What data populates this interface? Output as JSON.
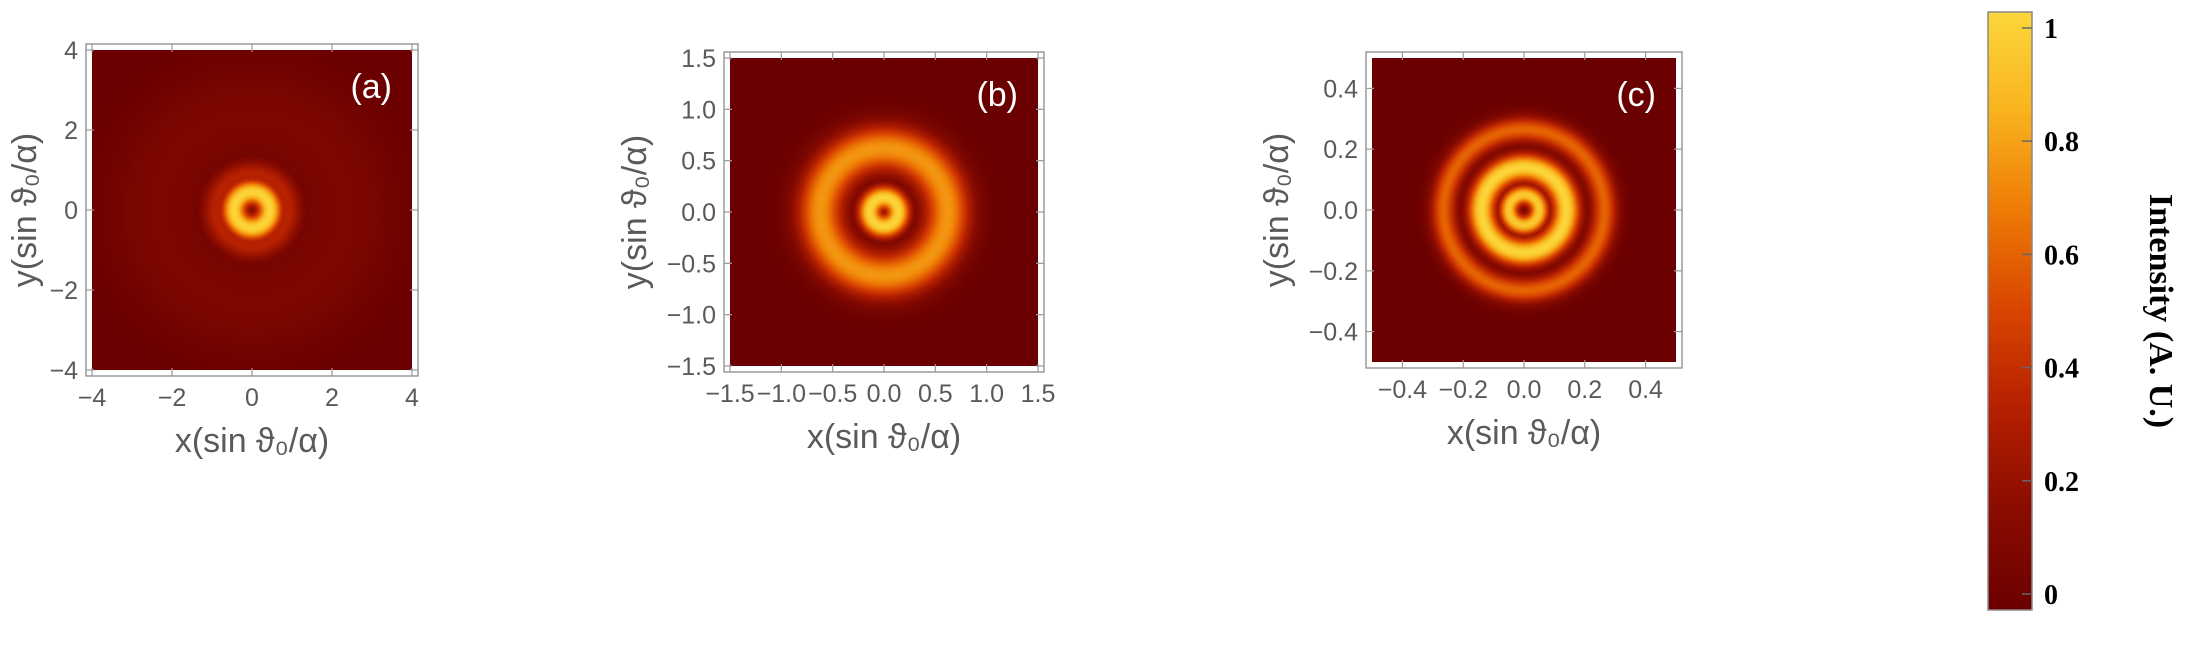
{
  "chart_data": [
    {
      "type": "heatmap",
      "panel_label": "(a)",
      "xlabel": "x(sin ϑ₀/α)",
      "ylabel": "y(sin ϑ₀/α)",
      "xlim": [
        -4,
        4
      ],
      "ylim": [
        -4,
        4
      ],
      "xticks": [
        "−4",
        "−2",
        "0",
        "2",
        "4"
      ],
      "yticks": [
        "−4",
        "−2",
        "0",
        "2",
        "4"
      ],
      "xtick_values": [
        -4,
        -2,
        0,
        2,
        4
      ],
      "ytick_values": [
        -4,
        -2,
        0,
        2,
        4
      ],
      "rings": [
        {
          "radius": 0.0,
          "intensity": 0.05,
          "width": 0.12
        },
        {
          "radius": 0.45,
          "intensity": 1.0,
          "width": 0.22
        },
        {
          "radius": 0.9,
          "intensity": 0.35,
          "width": 0.25
        },
        {
          "radius": 2.3,
          "intensity": 0.1,
          "width": 0.9
        }
      ],
      "grid": false
    },
    {
      "type": "heatmap",
      "panel_label": "(b)",
      "xlabel": "x(sin ϑ₀/α)",
      "ylabel": "y(sin ϑ₀/α)",
      "xlim": [
        -1.5,
        1.5
      ],
      "ylim": [
        -1.5,
        1.5
      ],
      "xticks": [
        "−1.5",
        "−1.0",
        "−0.5",
        "0.0",
        "0.5",
        "1.0",
        "1.5"
      ],
      "yticks": [
        "−1.5",
        "−1.0",
        "−0.5",
        "0.0",
        "0.5",
        "1.0",
        "1.5"
      ],
      "xtick_values": [
        -1.5,
        -1.0,
        -0.5,
        0.0,
        0.5,
        1.0,
        1.5
      ],
      "ytick_values": [
        -1.5,
        -1.0,
        -0.5,
        0.0,
        0.5,
        1.0,
        1.5
      ],
      "rings": [
        {
          "radius": 0.0,
          "intensity": 0.05,
          "width": 0.05
        },
        {
          "radius": 0.14,
          "intensity": 1.0,
          "width": 0.08
        },
        {
          "radius": 0.62,
          "intensity": 0.75,
          "width": 0.16
        }
      ],
      "grid": false
    },
    {
      "type": "heatmap",
      "panel_label": "(c)",
      "xlabel": "x(sin ϑ₀/α)",
      "ylabel": "y(sin ϑ₀/α)",
      "xlim": [
        -0.5,
        0.5
      ],
      "ylim": [
        -0.5,
        0.5
      ],
      "xticks": [
        "−0.4",
        "−0.2",
        "0.0",
        "0.2",
        "0.4"
      ],
      "yticks": [
        "−0.4",
        "−0.2",
        "0.0",
        "0.2",
        "0.4"
      ],
      "xtick_values": [
        -0.4,
        -0.2,
        0.0,
        0.2,
        0.4
      ],
      "ytick_values": [
        -0.4,
        -0.2,
        0.0,
        0.2,
        0.4
      ],
      "rings": [
        {
          "radius": 0.0,
          "intensity": 0.05,
          "width": 0.012
        },
        {
          "radius": 0.05,
          "intensity": 0.95,
          "width": 0.022
        },
        {
          "radius": 0.14,
          "intensity": 1.0,
          "width": 0.032
        },
        {
          "radius": 0.265,
          "intensity": 0.6,
          "width": 0.03
        }
      ],
      "grid": false
    }
  ],
  "colorbar": {
    "title": "Intensity (A. U.)",
    "range": [
      0,
      1
    ],
    "tick_values": [
      0,
      0.2,
      0.4,
      0.6,
      0.8,
      1
    ],
    "tick_labels": [
      "0",
      "0.2",
      "0.4",
      "0.6",
      "0.8",
      "1"
    ],
    "colors": [
      "#6b0000",
      "#8a0c00",
      "#b41f00",
      "#d84400",
      "#ee7a05",
      "#f9b31e",
      "#fbd63a"
    ]
  }
}
